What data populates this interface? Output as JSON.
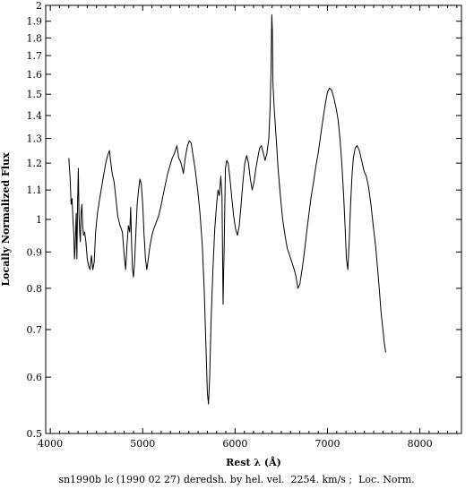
{
  "chart_data": {
    "type": "line",
    "title": "",
    "xlabel": "Rest λ (Å)",
    "ylabel": "Locally Normalized Flux",
    "caption": "sn1990b lc (1990 02 27) deredsh. by hel. vel.  2254. km/s ;  Loc. Norm.",
    "xlim": [
      3950,
      8450
    ],
    "ylim": [
      0.5,
      2.0
    ],
    "yscale": "log",
    "grid": false,
    "x_ticks": [
      4000,
      5000,
      6000,
      7000,
      8000
    ],
    "y_ticks": [
      0.5,
      0.6,
      0.7,
      0.8,
      0.9,
      1,
      1.1,
      1.2,
      1.3,
      1.4,
      1.5,
      1.6,
      1.7,
      1.8,
      1.9,
      2
    ],
    "x_tick_labels": [
      "4000",
      "5000",
      "6000",
      "7000",
      "8000"
    ],
    "y_tick_labels": [
      "0.5",
      "0.6",
      "0.7",
      "0.8",
      "0.9",
      "1",
      "1.1",
      "1.2",
      "1.3",
      "1.4",
      "1.5",
      "1.6",
      "1.7",
      "1.8",
      "1.9",
      "2"
    ],
    "series": [
      {
        "color": "#000000",
        "points": [
          [
            4200,
            1.22
          ],
          [
            4215,
            1.14
          ],
          [
            4225,
            1.05
          ],
          [
            4235,
            1.07
          ],
          [
            4245,
            1.0
          ],
          [
            4255,
            0.95
          ],
          [
            4262,
            0.88
          ],
          [
            4270,
            0.92
          ],
          [
            4280,
            1.02
          ],
          [
            4288,
            0.88
          ],
          [
            4295,
            1.05
          ],
          [
            4303,
            1.18
          ],
          [
            4310,
            1.02
          ],
          [
            4318,
            0.96
          ],
          [
            4325,
            0.93
          ],
          [
            4333,
            1.02
          ],
          [
            4342,
            1.05
          ],
          [
            4350,
            0.98
          ],
          [
            4360,
            0.95
          ],
          [
            4372,
            0.96
          ],
          [
            4385,
            0.93
          ],
          [
            4400,
            0.88
          ],
          [
            4415,
            0.86
          ],
          [
            4430,
            0.85
          ],
          [
            4445,
            0.89
          ],
          [
            4460,
            0.85
          ],
          [
            4475,
            0.87
          ],
          [
            4490,
            0.96
          ],
          [
            4510,
            1.02
          ],
          [
            4530,
            1.06
          ],
          [
            4550,
            1.1
          ],
          [
            4575,
            1.15
          ],
          [
            4600,
            1.2
          ],
          [
            4620,
            1.23
          ],
          [
            4640,
            1.25
          ],
          [
            4655,
            1.2
          ],
          [
            4670,
            1.16
          ],
          [
            4690,
            1.13
          ],
          [
            4710,
            1.07
          ],
          [
            4730,
            1.01
          ],
          [
            4755,
            0.98
          ],
          [
            4780,
            0.96
          ],
          [
            4800,
            0.89
          ],
          [
            4815,
            0.85
          ],
          [
            4830,
            0.92
          ],
          [
            4845,
            0.98
          ],
          [
            4860,
            0.96
          ],
          [
            4870,
            1.04
          ],
          [
            4880,
            0.92
          ],
          [
            4890,
            0.85
          ],
          [
            4900,
            0.83
          ],
          [
            4912,
            0.87
          ],
          [
            4925,
            0.95
          ],
          [
            4940,
            1.05
          ],
          [
            4955,
            1.1
          ],
          [
            4970,
            1.14
          ],
          [
            4985,
            1.12
          ],
          [
            5000,
            1.05
          ],
          [
            5015,
            0.95
          ],
          [
            5030,
            0.88
          ],
          [
            5045,
            0.85
          ],
          [
            5060,
            0.88
          ],
          [
            5080,
            0.92
          ],
          [
            5100,
            0.95
          ],
          [
            5120,
            0.97
          ],
          [
            5145,
            0.99
          ],
          [
            5170,
            1.01
          ],
          [
            5195,
            1.04
          ],
          [
            5220,
            1.08
          ],
          [
            5245,
            1.12
          ],
          [
            5270,
            1.16
          ],
          [
            5295,
            1.19
          ],
          [
            5320,
            1.22
          ],
          [
            5345,
            1.24
          ],
          [
            5370,
            1.27
          ],
          [
            5390,
            1.22
          ],
          [
            5415,
            1.2
          ],
          [
            5440,
            1.16
          ],
          [
            5460,
            1.22
          ],
          [
            5485,
            1.27
          ],
          [
            5505,
            1.29
          ],
          [
            5525,
            1.28
          ],
          [
            5545,
            1.23
          ],
          [
            5570,
            1.17
          ],
          [
            5595,
            1.1
          ],
          [
            5620,
            1.02
          ],
          [
            5645,
            0.92
          ],
          [
            5665,
            0.8
          ],
          [
            5685,
            0.66
          ],
          [
            5700,
            0.57
          ],
          [
            5712,
            0.55
          ],
          [
            5725,
            0.6
          ],
          [
            5740,
            0.72
          ],
          [
            5760,
            0.85
          ],
          [
            5780,
            0.97
          ],
          [
            5800,
            1.05
          ],
          [
            5815,
            1.1
          ],
          [
            5830,
            1.08
          ],
          [
            5845,
            1.15
          ],
          [
            5858,
            1.08
          ],
          [
            5870,
            0.76
          ],
          [
            5882,
            0.92
          ],
          [
            5895,
            1.18
          ],
          [
            5910,
            1.21
          ],
          [
            5925,
            1.2
          ],
          [
            5945,
            1.14
          ],
          [
            5965,
            1.07
          ],
          [
            5985,
            1.01
          ],
          [
            6005,
            0.97
          ],
          [
            6025,
            0.95
          ],
          [
            6045,
            0.98
          ],
          [
            6065,
            1.05
          ],
          [
            6085,
            1.13
          ],
          [
            6105,
            1.2
          ],
          [
            6125,
            1.23
          ],
          [
            6145,
            1.2
          ],
          [
            6165,
            1.14
          ],
          [
            6185,
            1.1
          ],
          [
            6205,
            1.13
          ],
          [
            6225,
            1.18
          ],
          [
            6245,
            1.22
          ],
          [
            6265,
            1.26
          ],
          [
            6285,
            1.27
          ],
          [
            6305,
            1.24
          ],
          [
            6325,
            1.21
          ],
          [
            6345,
            1.24
          ],
          [
            6365,
            1.3
          ],
          [
            6380,
            1.45
          ],
          [
            6390,
            1.65
          ],
          [
            6397,
            1.94
          ],
          [
            6403,
            1.85
          ],
          [
            6410,
            1.55
          ],
          [
            6425,
            1.42
          ],
          [
            6445,
            1.3
          ],
          [
            6465,
            1.18
          ],
          [
            6490,
            1.08
          ],
          [
            6515,
            1.0
          ],
          [
            6540,
            0.95
          ],
          [
            6565,
            0.91
          ],
          [
            6590,
            0.89
          ],
          [
            6615,
            0.87
          ],
          [
            6640,
            0.85
          ],
          [
            6660,
            0.83
          ],
          [
            6680,
            0.8
          ],
          [
            6700,
            0.81
          ],
          [
            6725,
            0.85
          ],
          [
            6750,
            0.9
          ],
          [
            6775,
            0.96
          ],
          [
            6800,
            1.02
          ],
          [
            6825,
            1.08
          ],
          [
            6850,
            1.13
          ],
          [
            6875,
            1.19
          ],
          [
            6900,
            1.24
          ],
          [
            6925,
            1.31
          ],
          [
            6950,
            1.38
          ],
          [
            6975,
            1.45
          ],
          [
            7000,
            1.51
          ],
          [
            7020,
            1.53
          ],
          [
            7045,
            1.52
          ],
          [
            7070,
            1.48
          ],
          [
            7095,
            1.43
          ],
          [
            7115,
            1.38
          ],
          [
            7135,
            1.3
          ],
          [
            7155,
            1.2
          ],
          [
            7175,
            1.08
          ],
          [
            7190,
            0.98
          ],
          [
            7205,
            0.88
          ],
          [
            7220,
            0.85
          ],
          [
            7235,
            0.93
          ],
          [
            7250,
            1.05
          ],
          [
            7265,
            1.15
          ],
          [
            7280,
            1.22
          ],
          [
            7300,
            1.26
          ],
          [
            7320,
            1.27
          ],
          [
            7345,
            1.25
          ],
          [
            7370,
            1.21
          ],
          [
            7395,
            1.17
          ],
          [
            7420,
            1.15
          ],
          [
            7445,
            1.11
          ],
          [
            7470,
            1.05
          ],
          [
            7495,
            0.98
          ],
          [
            7520,
            0.92
          ],
          [
            7540,
            0.86
          ],
          [
            7560,
            0.8
          ],
          [
            7580,
            0.74
          ],
          [
            7600,
            0.7
          ],
          [
            7615,
            0.67
          ],
          [
            7630,
            0.65
          ]
        ]
      }
    ]
  }
}
